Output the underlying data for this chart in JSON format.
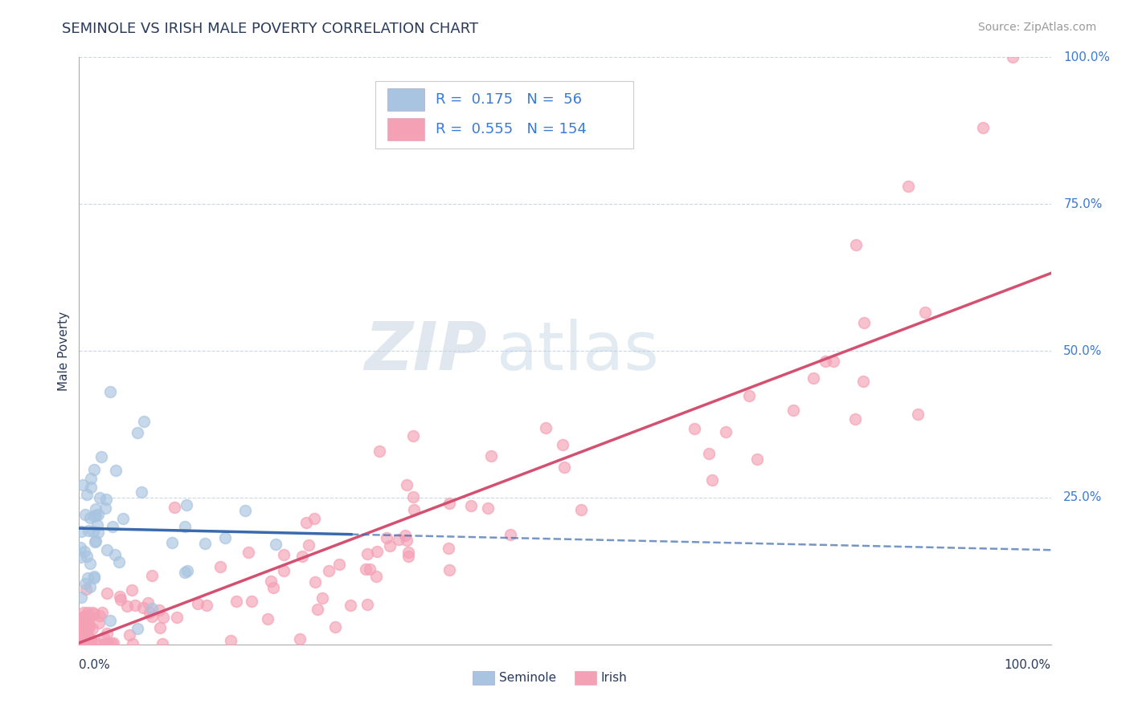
{
  "title": "SEMINOLE VS IRISH MALE POVERTY CORRELATION CHART",
  "source": "Source: ZipAtlas.com",
  "ylabel": "Male Poverty",
  "y_tick_labels": [
    "25.0%",
    "50.0%",
    "75.0%",
    "100.0%"
  ],
  "y_tick_values": [
    0.25,
    0.5,
    0.75,
    1.0
  ],
  "seminole_R": 0.175,
  "seminole_N": 56,
  "irish_R": 0.555,
  "irish_N": 154,
  "seminole_color": "#a8c4e0",
  "irish_color": "#f4a0b5",
  "seminole_line_color": "#3a6aad",
  "irish_line_color": "#d45070",
  "background_color": "#ffffff",
  "grid_color": "#c8d8e8",
  "title_color": "#2a3a5a",
  "legend_text_color": "#3a7ad4",
  "watermark": "ZIPatlas",
  "source_color": "#999999"
}
